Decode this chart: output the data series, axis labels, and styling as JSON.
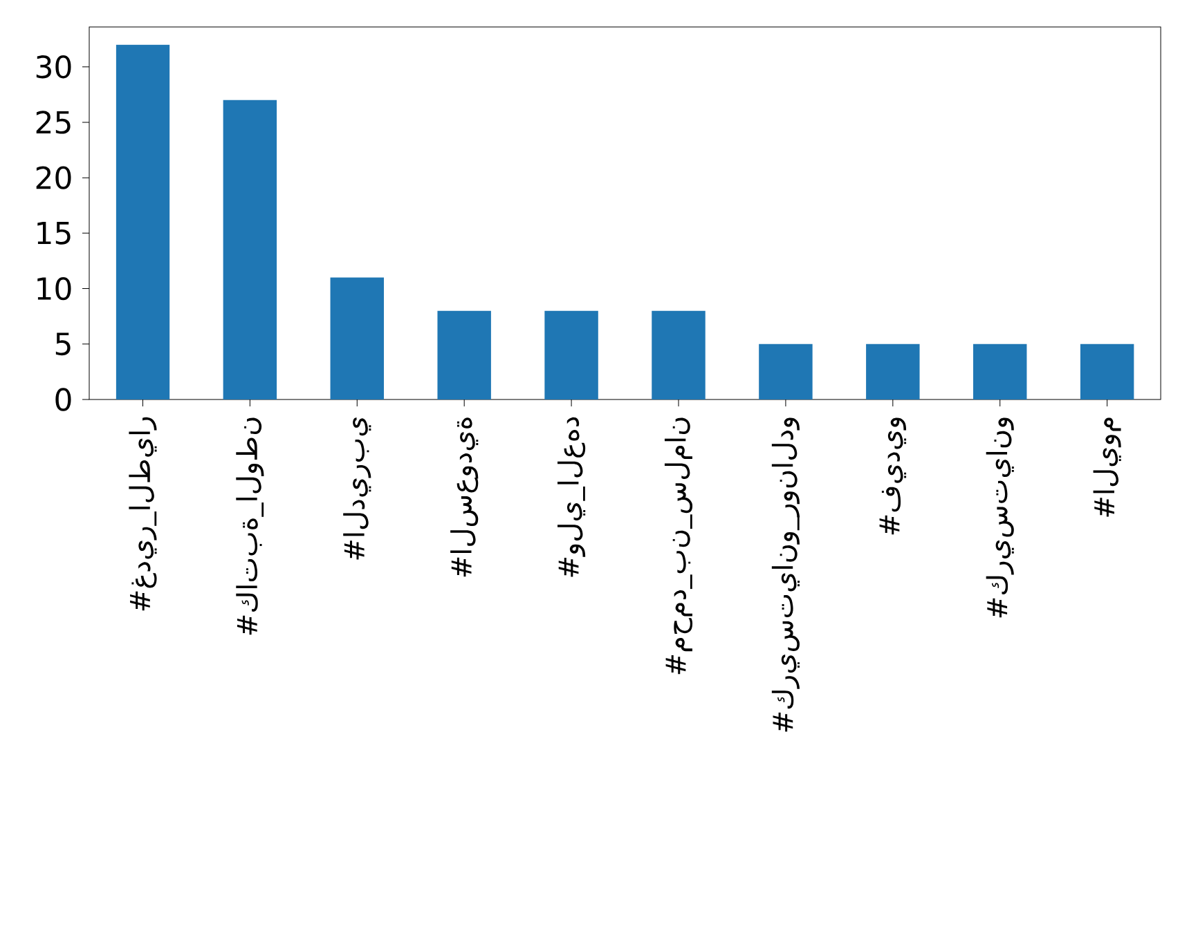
{
  "chart_data": {
    "type": "bar",
    "categories": [
      "#غدير_الطيار",
      "#كاتبة_الوطن",
      "#الديربي",
      "#السعودية",
      "#ولي_العهد",
      "#محمد_بن_سلمان",
      "#كريستيانو_رونالدو",
      "#فيديو",
      "#كريستيانو",
      "#اليوم"
    ],
    "values": [
      32,
      27,
      11,
      8,
      8,
      8,
      5,
      5,
      5,
      5
    ],
    "color": "#1f77b4",
    "ylim": [
      0,
      33.6
    ],
    "yticks": [
      0,
      5,
      10,
      15,
      20,
      25,
      30
    ],
    "grid": false
  }
}
